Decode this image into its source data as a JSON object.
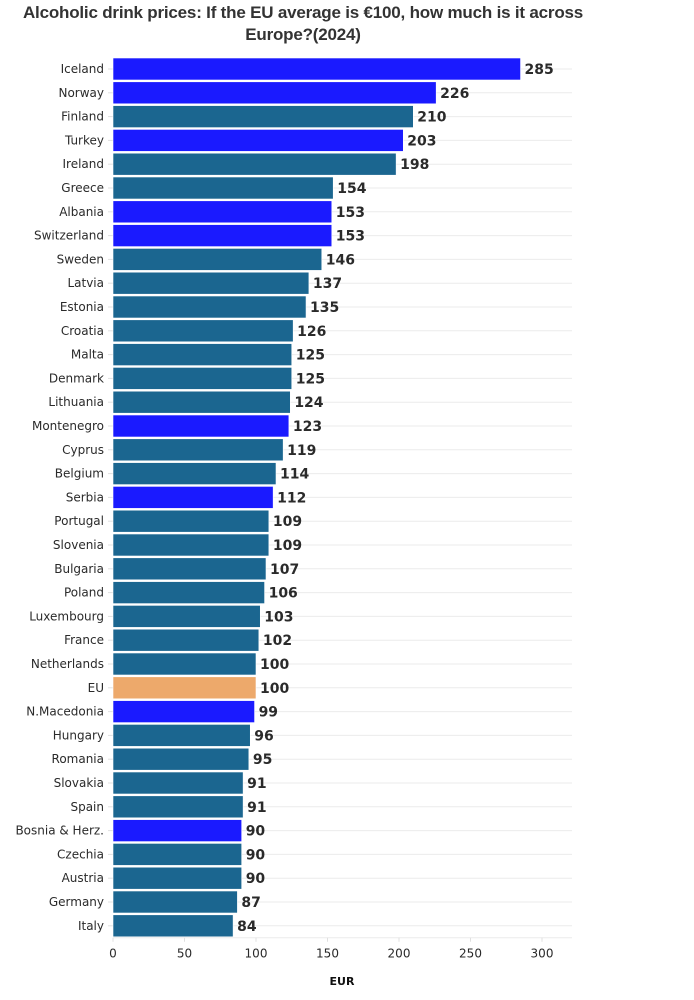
{
  "chart_data": {
    "type": "bar",
    "orientation": "horizontal",
    "title": "Alcoholic drink prices: If the EU average is €100, how much is it across Europe?(2024)",
    "xlabel": "EUR",
    "ylabel": "",
    "xlim": [
      0,
      320
    ],
    "xticks": [
      0,
      50,
      100,
      150,
      200,
      250,
      300
    ],
    "grid": true,
    "legend": "none",
    "colors": {
      "eu_member": "#1b6690",
      "non_eu": "#1a1aff",
      "eu_average": "#eda96b"
    },
    "categories": [
      "Iceland",
      "Norway",
      "Finland",
      "Turkey",
      "Ireland",
      "Greece",
      "Albania",
      "Switzerland",
      "Sweden",
      "Latvia",
      "Estonia",
      "Croatia",
      "Malta",
      "Denmark",
      "Lithuania",
      "Montenegro",
      "Cyprus",
      "Belgium",
      "Serbia",
      "Portugal",
      "Slovenia",
      "Bulgaria",
      "Poland",
      "Luxembourg",
      "France",
      "Netherlands",
      "EU",
      "N.Macedonia",
      "Hungary",
      "Romania",
      "Slovakia",
      "Spain",
      "Bosnia & Herz.",
      "Czechia",
      "Austria",
      "Germany",
      "Italy"
    ],
    "values": [
      285,
      226,
      210,
      203,
      198,
      154,
      153,
      153,
      146,
      137,
      135,
      126,
      125,
      125,
      124,
      123,
      119,
      114,
      112,
      109,
      109,
      107,
      106,
      103,
      102,
      100,
      100,
      99,
      96,
      95,
      91,
      91,
      90,
      90,
      90,
      87,
      84
    ],
    "groups": [
      "non_eu",
      "non_eu",
      "eu_member",
      "non_eu",
      "eu_member",
      "eu_member",
      "non_eu",
      "non_eu",
      "eu_member",
      "eu_member",
      "eu_member",
      "eu_member",
      "eu_member",
      "eu_member",
      "eu_member",
      "non_eu",
      "eu_member",
      "eu_member",
      "non_eu",
      "eu_member",
      "eu_member",
      "eu_member",
      "eu_member",
      "eu_member",
      "eu_member",
      "eu_member",
      "eu_average",
      "non_eu",
      "eu_member",
      "eu_member",
      "eu_member",
      "eu_member",
      "non_eu",
      "eu_member",
      "eu_member",
      "eu_member",
      "eu_member"
    ]
  }
}
